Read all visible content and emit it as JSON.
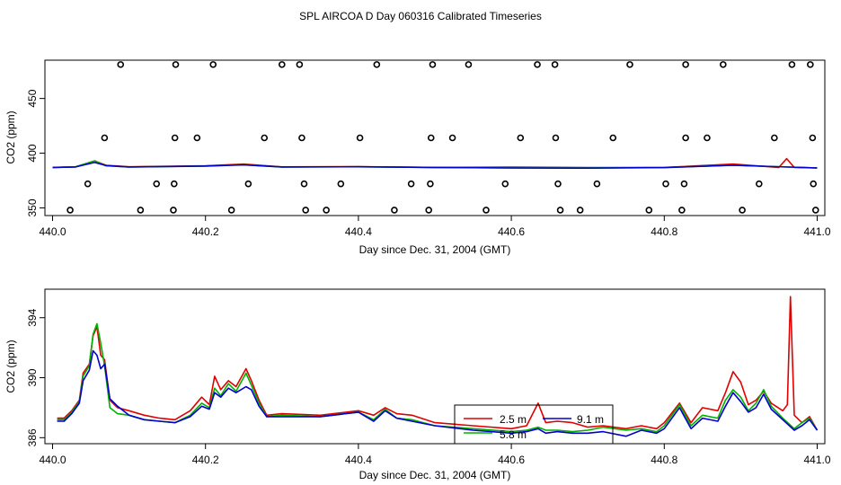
{
  "title": "SPL AIRCOA D  Day 060316  Calibrated Timeseries",
  "colors": {
    "s25": "#e00000",
    "s58": "#00b000",
    "s91": "#0000d0",
    "markers": "#000000"
  },
  "chart_data": [
    {
      "type": "line",
      "name": "top-panel",
      "xlabel": "Day since Dec. 31, 2004 (GMT)",
      "ylabel": "CO2 (ppm)",
      "xlim": [
        439.99,
        441.01
      ],
      "ylim": [
        343,
        485
      ],
      "xticks": [
        440.0,
        440.2,
        440.4,
        440.6,
        440.8,
        441.0
      ],
      "xtick_labels": [
        "440.0",
        "440.2",
        "440.4",
        "440.6",
        "440.8",
        "441.0"
      ],
      "yticks": [
        350,
        400,
        450
      ],
      "ytick_labels": [
        "350",
        "400",
        "450"
      ],
      "reference_points": {
        "marker": "circle",
        "x": [
          440.089,
          440.161,
          440.21,
          440.3,
          440.323,
          440.424,
          440.497,
          440.544,
          440.634,
          440.657,
          440.755,
          440.828,
          440.877,
          440.967,
          440.991,
          440.068,
          440.16,
          440.189,
          440.277,
          440.326,
          440.402,
          440.495,
          440.523,
          440.612,
          440.658,
          440.733,
          440.828,
          440.856,
          440.944,
          440.994,
          440.046,
          440.136,
          440.159,
          440.256,
          440.329,
          440.377,
          440.469,
          440.494,
          440.592,
          440.661,
          440.712,
          440.802,
          440.826,
          440.924,
          440.995,
          440.023,
          440.115,
          440.158,
          440.234,
          440.331,
          440.358,
          440.447,
          440.492,
          440.567,
          440.664,
          440.69,
          440.78,
          440.823,
          440.902,
          440.998
        ],
        "y": [
          481,
          481,
          481,
          481,
          481,
          481,
          481,
          481,
          481,
          481,
          481,
          481,
          481,
          481,
          481,
          414,
          414,
          414,
          414,
          414,
          414,
          414,
          414,
          414,
          414,
          414,
          414,
          414,
          414,
          414,
          372,
          372,
          372,
          372,
          372,
          372,
          372,
          372,
          372,
          372,
          372,
          372,
          372,
          372,
          372,
          348,
          348,
          348,
          348,
          348,
          348,
          348,
          348,
          348,
          348,
          348,
          348,
          348,
          348,
          348
        ]
      },
      "series": [
        {
          "name": "2.5 m",
          "color": "#e00000",
          "x": [
            440.0,
            440.03,
            440.055,
            440.07,
            440.1,
            440.2,
            440.25,
            440.3,
            440.4,
            440.5,
            440.6,
            440.7,
            440.8,
            440.89,
            440.95,
            440.96,
            440.97,
            441.0
          ],
          "y": [
            387,
            387.5,
            393,
            389,
            387.6,
            388.5,
            390,
            387.5,
            387.7,
            387,
            387.3,
            386.8,
            387,
            390,
            387,
            395,
            387,
            386.5
          ]
        },
        {
          "name": "5.8 m",
          "color": "#00b000",
          "x": [
            440.0,
            440.03,
            440.055,
            440.07,
            440.1,
            440.2,
            440.25,
            440.3,
            440.4,
            440.5,
            440.6,
            440.7,
            440.8,
            440.89,
            441.0
          ],
          "y": [
            387,
            387.5,
            393,
            388.5,
            387.4,
            388.3,
            389.5,
            387.4,
            387.6,
            387,
            386.6,
            386.6,
            387,
            389,
            386.5
          ]
        },
        {
          "name": "9.1 m",
          "color": "#0000d0",
          "x": [
            440.0,
            440.03,
            440.055,
            440.07,
            440.1,
            440.2,
            440.25,
            440.3,
            440.4,
            440.5,
            440.6,
            440.7,
            440.8,
            440.89,
            441.0
          ],
          "y": [
            387,
            387.4,
            391.5,
            388.6,
            387.4,
            388.2,
            389.3,
            387.4,
            387.6,
            387,
            386.5,
            386.3,
            386.8,
            389,
            386.5
          ]
        }
      ]
    },
    {
      "type": "line",
      "name": "bottom-panel",
      "xlabel": "Day since Dec. 31, 2004 (GMT)",
      "ylabel": "CO2 (ppm)",
      "xlim": [
        439.99,
        441.01
      ],
      "ylim": [
        385.6,
        395.9
      ],
      "xticks": [
        440.0,
        440.2,
        440.4,
        440.6,
        440.8,
        441.0
      ],
      "xtick_labels": [
        "440.0",
        "440.2",
        "440.4",
        "440.6",
        "440.8",
        "441.0"
      ],
      "yticks": [
        386,
        390,
        394
      ],
      "ytick_labels": [
        "386",
        "390",
        "394"
      ],
      "legend": {
        "position": "bottom-center",
        "entries": [
          "2.5 m",
          "9.1 m",
          "5.8 m"
        ]
      },
      "series": [
        {
          "name": "2.5 m",
          "color": "#e00000",
          "x": [
            440.006,
            440.015,
            440.025,
            440.035,
            440.04,
            440.048,
            440.053,
            440.058,
            440.063,
            440.068,
            440.075,
            440.085,
            440.1,
            440.12,
            440.14,
            440.16,
            440.18,
            440.195,
            440.205,
            440.212,
            440.22,
            440.23,
            440.24,
            440.253,
            440.26,
            440.27,
            440.28,
            440.3,
            440.35,
            440.4,
            440.42,
            440.435,
            440.45,
            440.47,
            440.5,
            440.55,
            440.6,
            440.62,
            440.635,
            440.645,
            440.66,
            440.68,
            440.7,
            440.72,
            440.75,
            440.77,
            440.79,
            440.8,
            440.82,
            440.835,
            440.85,
            440.87,
            440.88,
            440.89,
            440.9,
            440.91,
            440.92,
            440.93,
            440.94,
            440.955,
            440.961,
            440.965,
            440.97,
            440.98,
            440.99,
            441.0
          ],
          "y": [
            387.3,
            387.3,
            387.8,
            388.5,
            390.3,
            390.9,
            392.8,
            393.4,
            391.5,
            391.2,
            388.5,
            388,
            387.8,
            387.5,
            387.3,
            387.2,
            387.8,
            388.7,
            388.2,
            390.1,
            389.2,
            389.8,
            389.4,
            390.6,
            389.8,
            388.5,
            387.5,
            387.6,
            387.5,
            387.8,
            387.5,
            388,
            387.6,
            387.5,
            387,
            386.8,
            386.6,
            386.8,
            388.3,
            387,
            387.1,
            387,
            386.7,
            386.8,
            386.6,
            386.8,
            386.6,
            387,
            388.3,
            387,
            388,
            387.8,
            389,
            390.4,
            389.7,
            388.2,
            388.5,
            389.1,
            388.3,
            387.8,
            388.2,
            395.4,
            387.5,
            387,
            387.4,
            386.5
          ]
        },
        {
          "name": "5.8 m",
          "color": "#00b000",
          "x": [
            440.006,
            440.015,
            440.025,
            440.035,
            440.04,
            440.048,
            440.053,
            440.058,
            440.063,
            440.068,
            440.075,
            440.085,
            440.1,
            440.12,
            440.14,
            440.16,
            440.18,
            440.195,
            440.205,
            440.212,
            440.22,
            440.23,
            440.24,
            440.253,
            440.26,
            440.27,
            440.28,
            440.3,
            440.35,
            440.4,
            440.42,
            440.435,
            440.45,
            440.47,
            440.5,
            440.55,
            440.6,
            440.62,
            440.635,
            440.645,
            440.66,
            440.68,
            440.7,
            440.72,
            440.75,
            440.77,
            440.79,
            440.8,
            440.82,
            440.835,
            440.85,
            440.87,
            440.88,
            440.89,
            440.9,
            440.91,
            440.92,
            440.93,
            440.94,
            440.955,
            440.97,
            440.98,
            440.99,
            441.0
          ],
          "y": [
            387.2,
            387.2,
            387.7,
            388.4,
            390.1,
            390.8,
            392.9,
            393.6,
            392.3,
            390.8,
            388,
            387.6,
            387.5,
            387.2,
            387.1,
            387,
            387.5,
            388.3,
            388,
            389.3,
            388.8,
            389.6,
            389.1,
            390.3,
            389.5,
            388.3,
            387.4,
            387.5,
            387.4,
            387.7,
            387.2,
            387.9,
            387.3,
            387.2,
            386.8,
            386.6,
            386.4,
            386.5,
            386.7,
            386.5,
            386.5,
            386.4,
            386.5,
            386.7,
            386.5,
            386.6,
            386.4,
            386.8,
            388.2,
            386.8,
            387.5,
            387.3,
            388.5,
            389.2,
            388.7,
            387.8,
            388.3,
            389.2,
            388.1,
            387.3,
            386.6,
            387,
            387.3,
            386.5
          ]
        },
        {
          "name": "9.1 m",
          "color": "#0000d0",
          "x": [
            440.006,
            440.015,
            440.025,
            440.035,
            440.04,
            440.048,
            440.053,
            440.058,
            440.063,
            440.068,
            440.075,
            440.085,
            440.1,
            440.12,
            440.14,
            440.16,
            440.18,
            440.195,
            440.205,
            440.212,
            440.22,
            440.23,
            440.24,
            440.253,
            440.26,
            440.27,
            440.28,
            440.3,
            440.35,
            440.4,
            440.42,
            440.435,
            440.45,
            440.47,
            440.5,
            440.55,
            440.6,
            440.62,
            440.635,
            440.645,
            440.66,
            440.68,
            440.7,
            440.72,
            440.75,
            440.77,
            440.79,
            440.8,
            440.82,
            440.835,
            440.85,
            440.87,
            440.88,
            440.89,
            440.9,
            440.91,
            440.92,
            440.93,
            440.94,
            440.955,
            440.97,
            440.98,
            440.99,
            441.0
          ],
          "y": [
            387.1,
            387.1,
            387.6,
            388.3,
            389.8,
            390.5,
            391.8,
            391.5,
            390.6,
            390.9,
            388.6,
            388.1,
            387.5,
            387.2,
            387.1,
            387,
            387.4,
            388.1,
            387.9,
            389,
            388.7,
            389.3,
            389,
            389.4,
            389.2,
            388.1,
            387.4,
            387.4,
            387.4,
            387.7,
            387.1,
            387.8,
            387.3,
            387.1,
            386.8,
            386.5,
            386.3,
            386.4,
            386.6,
            386.3,
            386.4,
            386.3,
            386.3,
            386.4,
            386.1,
            386.5,
            386.3,
            386.6,
            388,
            386.6,
            387.3,
            387.1,
            388.1,
            389,
            388.4,
            387.7,
            388,
            388.9,
            387.9,
            387.2,
            386.5,
            386.8,
            387.2,
            386.5
          ]
        }
      ]
    }
  ]
}
